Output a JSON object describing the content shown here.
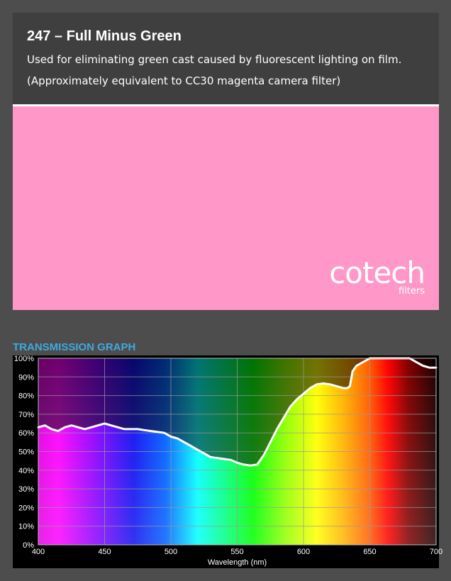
{
  "product": {
    "title": "247 – Full Minus Green",
    "description": "Used for eliminating green cast caused by fluorescent lighting on film.",
    "equivalent": "(Approximately equivalent to CC30 magenta camera filter)",
    "swatch_color": "#ff98c8"
  },
  "brand": {
    "logo_text": "cotech",
    "logo_sub": "filters"
  },
  "section": {
    "title": "TRANSMISSION GRAPH",
    "title_color": "#3fa9df"
  },
  "chart_data": {
    "type": "line",
    "title": "",
    "xlabel": "Wavelength (nm)",
    "ylabel": "",
    "xlim": [
      400,
      700
    ],
    "ylim": [
      0,
      100
    ],
    "x_ticks": [
      400,
      450,
      500,
      550,
      600,
      650,
      700
    ],
    "y_ticks": [
      0,
      10,
      20,
      30,
      40,
      50,
      60,
      70,
      80,
      90,
      100
    ],
    "y_tick_suffix": "%",
    "grid": true,
    "line_color": "#ffffff",
    "series": [
      {
        "x": [
          400,
          405,
          410,
          415,
          420,
          425,
          430,
          435,
          440,
          445,
          450,
          455,
          460,
          465,
          470,
          475,
          480,
          485,
          490,
          495,
          500,
          505,
          510,
          515,
          520,
          525,
          530,
          535,
          540,
          545,
          550,
          555,
          560,
          565,
          570,
          575,
          580,
          585,
          590,
          595,
          600,
          605,
          610,
          615,
          620,
          625,
          630,
          633,
          635,
          637,
          640,
          645,
          650,
          655,
          660,
          665,
          670,
          675,
          680,
          685,
          690,
          695,
          700
        ],
        "y": [
          63,
          64,
          62,
          61,
          63,
          64,
          63,
          62,
          63,
          64,
          65,
          64,
          63,
          62,
          62,
          62,
          61.5,
          61,
          60.5,
          60,
          58,
          57,
          55,
          53,
          51,
          49,
          47,
          46.5,
          46,
          45.5,
          44,
          43,
          42.5,
          43,
          48,
          55,
          62,
          68,
          74,
          78,
          81,
          84,
          86,
          86.5,
          86,
          85,
          84,
          84,
          85,
          93,
          96,
          98,
          100,
          100,
          100,
          100,
          100,
          100,
          100,
          98,
          96,
          95,
          95
        ]
      }
    ]
  }
}
